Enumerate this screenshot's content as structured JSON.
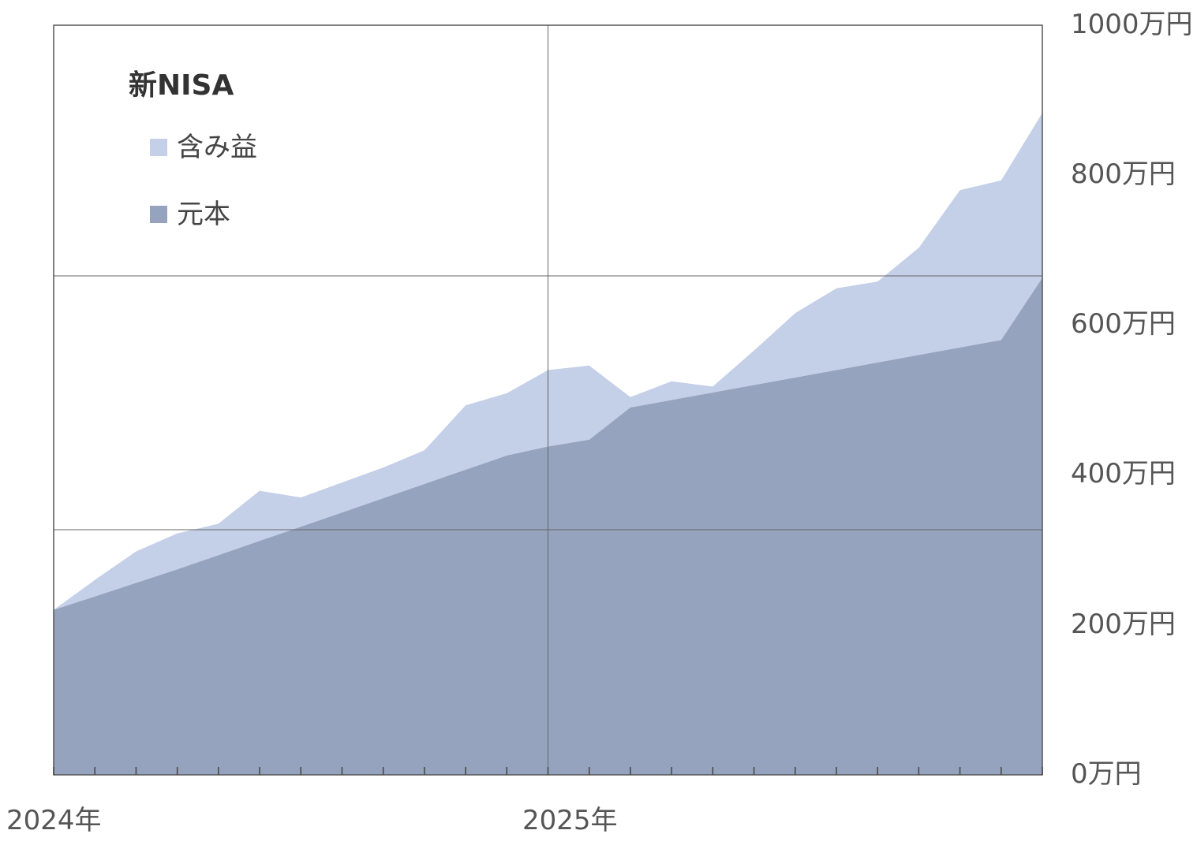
{
  "chart_data": {
    "type": "area",
    "title": "",
    "legend": {
      "title": "新NISA",
      "placement": "top-left",
      "entries": [
        {
          "label": "含み益",
          "color": "#c4cfe8"
        },
        {
          "label": "元本",
          "color": "#96a3be"
        }
      ]
    },
    "x_tick_labels": [
      "2024年",
      "2025年"
    ],
    "y_tick_labels": [
      "0万円",
      "200万円",
      "400万円",
      "600万円",
      "800万円",
      "1000万円"
    ],
    "ylim": [
      0,
      1000
    ],
    "y_unit": "万円",
    "y_axis_position": "right",
    "grid": true,
    "x_months": [
      "2024-01",
      "2024-02",
      "2024-03",
      "2024-04",
      "2024-05",
      "2024-06",
      "2024-07",
      "2024-08",
      "2024-09",
      "2024-10",
      "2024-11",
      "2024-12",
      "2025-01",
      "2025-02",
      "2025-03",
      "2025-04",
      "2025-05",
      "2025-06",
      "2025-07",
      "2025-08",
      "2025-09",
      "2025-10",
      "2025-11",
      "2025-12",
      "2026-01"
    ],
    "series": [
      {
        "name": "元本",
        "color": "#96a3be",
        "values": [
          220,
          238,
          256,
          274,
          293,
          312,
          331,
          350,
          369,
          388,
          407,
          426,
          438,
          447,
          490,
          500,
          510,
          520,
          530,
          540,
          550,
          560,
          570,
          580,
          663
        ]
      },
      {
        "name": "含み益",
        "color": "#c4cfe8",
        "values": [
          0,
          22,
          42,
          48,
          42,
          67,
          39,
          40,
          41,
          45,
          86,
          83,
          102,
          99,
          14,
          25,
          8,
          46,
          86,
          109,
          108,
          143,
          210,
          213,
          220
        ]
      }
    ]
  }
}
